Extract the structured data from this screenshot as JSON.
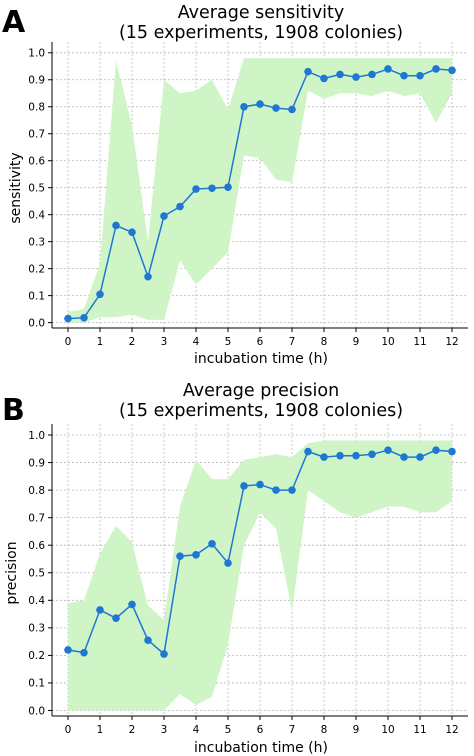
{
  "colors": {
    "series": "#1f77d4",
    "band": "#cff5c7",
    "text": "#000000",
    "grid": "#b5b5b5"
  },
  "chart_data": [
    {
      "type": "line",
      "panel_label": "A",
      "title": "Average sensitivity",
      "subtitle": "(15 experiments, 1908 colonies)",
      "xlabel": "incubation time (h)",
      "ylabel": "sensitivity",
      "xlim": [
        -0.5,
        12.5
      ],
      "ylim": [
        -0.02,
        1.04
      ],
      "xticks": [
        0,
        1,
        2,
        3,
        4,
        5,
        6,
        7,
        8,
        9,
        10,
        11,
        12
      ],
      "yticks": [
        "0.0",
        "0.1",
        "0.2",
        "0.3",
        "0.4",
        "0.5",
        "0.6",
        "0.7",
        "0.8",
        "0.9",
        "1.0"
      ],
      "grid": true,
      "x": [
        0,
        0.5,
        1,
        1.5,
        2,
        2.5,
        3,
        3.5,
        4,
        4.5,
        5,
        5.5,
        6,
        6.5,
        7,
        7.5,
        8,
        8.5,
        9,
        9.5,
        10,
        10.5,
        11,
        11.5,
        12
      ],
      "series": [
        {
          "values": [
            0.015,
            0.018,
            0.105,
            0.36,
            0.335,
            0.17,
            0.395,
            0.43,
            0.495,
            0.498,
            0.502,
            0.8,
            0.81,
            0.795,
            0.79,
            0.93,
            0.905,
            0.92,
            0.91,
            0.92,
            0.94,
            0.915,
            0.915,
            0.94,
            0.935
          ],
          "lower": [
            0.0,
            0.0,
            0.02,
            0.02,
            0.03,
            0.01,
            0.01,
            0.23,
            0.14,
            0.2,
            0.26,
            0.62,
            0.61,
            0.53,
            0.52,
            0.86,
            0.83,
            0.85,
            0.85,
            0.84,
            0.86,
            0.84,
            0.85,
            0.74,
            0.85
          ],
          "upper": [
            0.04,
            0.05,
            0.22,
            0.97,
            0.73,
            0.3,
            0.9,
            0.85,
            0.86,
            0.9,
            0.79,
            0.98,
            0.98,
            0.98,
            0.98,
            0.98,
            0.98,
            0.98,
            0.98,
            0.98,
            0.98,
            0.98,
            0.98,
            0.98,
            0.98
          ]
        }
      ]
    },
    {
      "type": "line",
      "panel_label": "B",
      "title": "Average precision",
      "subtitle": "(15 experiments, 1908 colonies)",
      "xlabel": "incubation time (h)",
      "ylabel": "precision",
      "xlim": [
        -0.5,
        12.5
      ],
      "ylim": [
        -0.02,
        1.04
      ],
      "xticks": [
        0,
        1,
        2,
        3,
        4,
        5,
        6,
        7,
        8,
        9,
        10,
        11,
        12
      ],
      "yticks": [
        "0.0",
        "0.1",
        "0.2",
        "0.3",
        "0.4",
        "0.5",
        "0.6",
        "0.7",
        "0.8",
        "0.9",
        "1.0"
      ],
      "grid": true,
      "x": [
        0,
        0.5,
        1,
        1.5,
        2,
        2.5,
        3,
        3.5,
        4,
        4.5,
        5,
        5.5,
        6,
        6.5,
        7,
        7.5,
        8,
        8.5,
        9,
        9.5,
        10,
        10.5,
        11,
        11.5,
        12
      ],
      "series": [
        {
          "values": [
            0.22,
            0.21,
            0.365,
            0.335,
            0.385,
            0.255,
            0.205,
            0.56,
            0.565,
            0.605,
            0.535,
            0.815,
            0.82,
            0.8,
            0.8,
            0.94,
            0.92,
            0.925,
            0.925,
            0.93,
            0.945,
            0.92,
            0.92,
            0.945,
            0.94
          ],
          "lower": [
            0.0,
            0.0,
            0.0,
            0.0,
            0.0,
            0.0,
            0.0,
            0.06,
            0.02,
            0.05,
            0.24,
            0.6,
            0.72,
            0.66,
            0.36,
            0.8,
            0.76,
            0.72,
            0.7,
            0.72,
            0.74,
            0.74,
            0.72,
            0.72,
            0.76
          ],
          "upper": [
            0.39,
            0.4,
            0.57,
            0.67,
            0.61,
            0.38,
            0.33,
            0.74,
            0.91,
            0.84,
            0.84,
            0.91,
            0.92,
            0.93,
            0.92,
            0.97,
            0.98,
            0.98,
            0.98,
            0.98,
            0.98,
            0.98,
            0.98,
            0.98,
            0.98
          ]
        }
      ]
    }
  ]
}
